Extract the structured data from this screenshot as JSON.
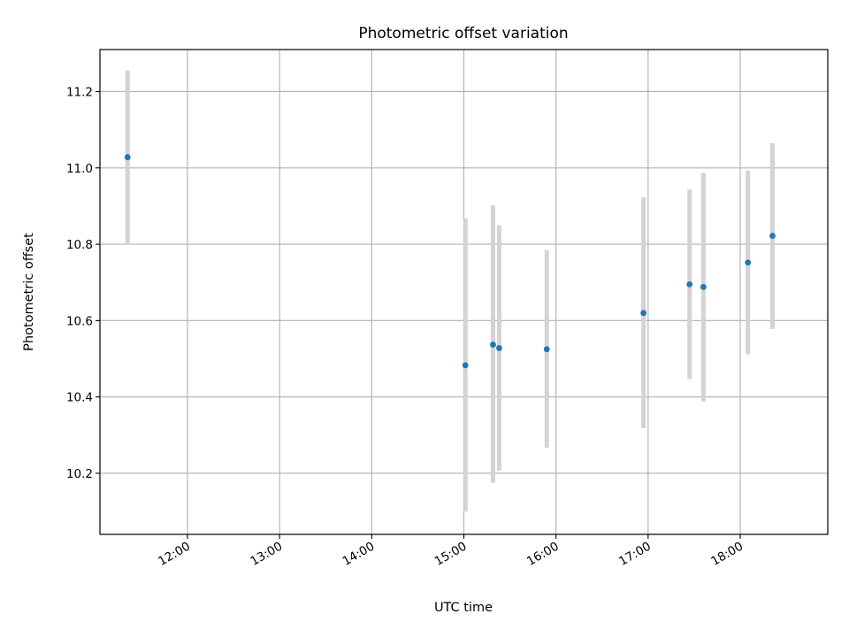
{
  "chart_data": {
    "type": "scatter",
    "title": "Photometric offset variation",
    "xlabel": "UTC time",
    "ylabel": "Photometric offset",
    "x_ticks": [
      "12:00",
      "13:00",
      "14:00",
      "15:00",
      "16:00",
      "17:00",
      "18:00"
    ],
    "y_ticks": [
      "10.2",
      "10.4",
      "10.6",
      "10.8",
      "11.0",
      "11.2"
    ],
    "xlim": [
      "11:03",
      "18:57"
    ],
    "ylim": [
      10.04,
      11.31
    ],
    "grid": true,
    "series": [
      {
        "points": [
          {
            "x": "11:21",
            "y": 11.028,
            "err_low": 10.8,
            "err_high": 11.255
          },
          {
            "x": "15:01",
            "y": 10.483,
            "err_low": 10.1,
            "err_high": 10.868
          },
          {
            "x": "15:19",
            "y": 10.537,
            "err_low": 10.175,
            "err_high": 10.902
          },
          {
            "x": "15:23",
            "y": 10.528,
            "err_low": 10.207,
            "err_high": 10.85
          },
          {
            "x": "15:54",
            "y": 10.525,
            "err_low": 10.267,
            "err_high": 10.785
          },
          {
            "x": "16:57",
            "y": 10.62,
            "err_low": 10.318,
            "err_high": 10.923
          },
          {
            "x": "17:27",
            "y": 10.695,
            "err_low": 10.447,
            "err_high": 10.943
          },
          {
            "x": "17:36",
            "y": 10.688,
            "err_low": 10.388,
            "err_high": 10.987
          },
          {
            "x": "18:05",
            "y": 10.752,
            "err_low": 10.512,
            "err_high": 10.993
          },
          {
            "x": "18:21",
            "y": 10.822,
            "err_low": 10.578,
            "err_high": 11.065
          }
        ]
      }
    ],
    "colors": {
      "marker": "#1f77b4",
      "errorbar": "#d3d3d3",
      "grid": "#b0b0b0",
      "axes": "#000000"
    }
  }
}
